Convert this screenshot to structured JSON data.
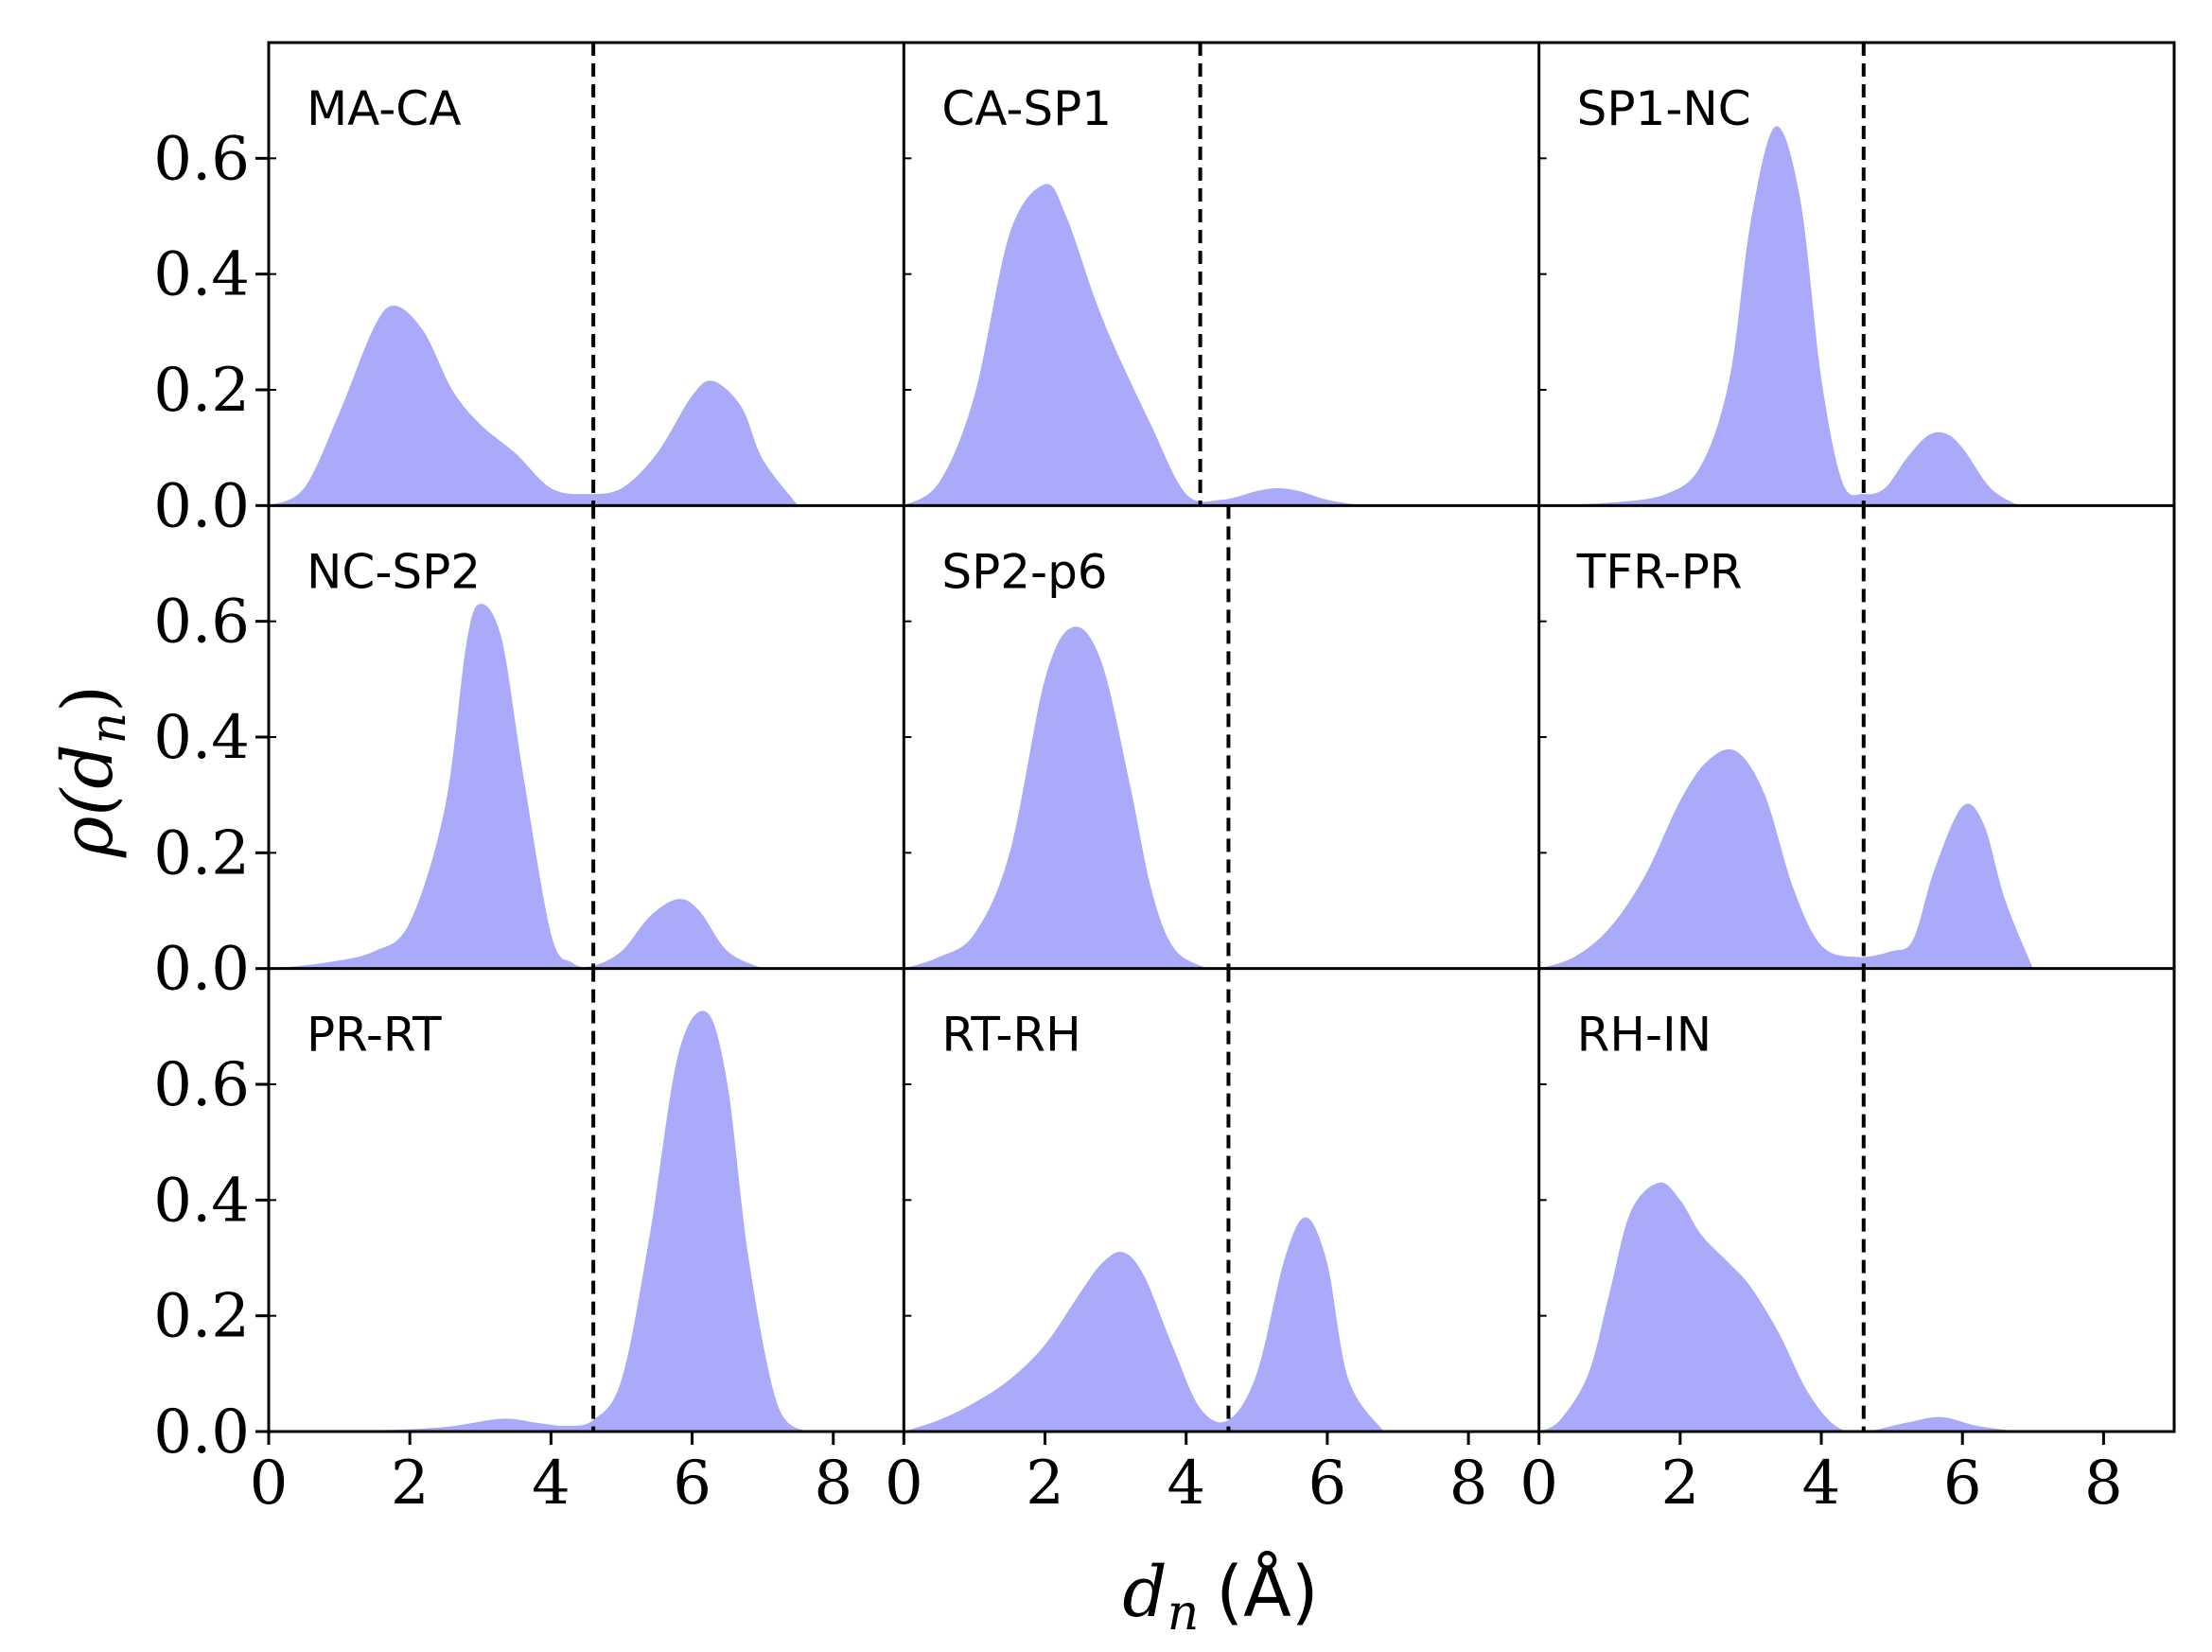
{
  "chart_data": {
    "type": "area",
    "layout": "3x3 grid of density panels, shared axes",
    "xlabel_symbol": "d",
    "xlabel_subscript": "n",
    "xlabel_unit": "(Å)",
    "ylabel_symbol": "ρ(d",
    "ylabel_subscript": "n",
    "ylabel_close": ")",
    "xlim": [
      0,
      9
    ],
    "ylim": [
      0,
      0.8
    ],
    "xticks": [
      "0",
      "2",
      "4",
      "6",
      "8"
    ],
    "xtick_values": [
      0,
      2,
      4,
      6,
      8
    ],
    "yticks": [
      "0.0",
      "0.2",
      "0.4",
      "0.6"
    ],
    "ytick_values": [
      0.0,
      0.2,
      0.4,
      0.6
    ],
    "fill_color": "#aaaafa",
    "threshold_style": "dashed black vertical line",
    "panels": [
      {
        "name": "MA-CA",
        "threshold": 4.6,
        "x": [
          0,
          0.5,
          1.0,
          1.5,
          1.8,
          2.2,
          2.6,
          3.0,
          3.5,
          4.0,
          4.5,
          5.0,
          5.5,
          6.0,
          6.3,
          6.7,
          7.0,
          7.5
        ],
        "y": [
          0.0,
          0.03,
          0.16,
          0.31,
          0.345,
          0.3,
          0.2,
          0.14,
          0.09,
          0.03,
          0.02,
          0.03,
          0.09,
          0.19,
          0.215,
          0.17,
          0.08,
          0.0
        ]
      },
      {
        "name": "CA-SP1",
        "threshold": 4.2,
        "x": [
          0,
          0.5,
          1.0,
          1.5,
          2.0,
          2.3,
          2.7,
          3.0,
          3.5,
          4.0,
          4.5,
          5.0,
          5.3,
          5.6,
          6.0,
          6.5
        ],
        "y": [
          0.0,
          0.04,
          0.19,
          0.47,
          0.555,
          0.5,
          0.36,
          0.27,
          0.14,
          0.02,
          0.01,
          0.025,
          0.03,
          0.025,
          0.01,
          0.0
        ]
      },
      {
        "name": "SP1-NC",
        "threshold": 4.6,
        "x": [
          0,
          1.0,
          1.8,
          2.3,
          2.7,
          3.0,
          3.35,
          3.7,
          4.0,
          4.3,
          4.6,
          4.9,
          5.2,
          5.5,
          5.75,
          6.0,
          6.4,
          6.8
        ],
        "y": [
          0.0,
          0.005,
          0.02,
          0.07,
          0.22,
          0.49,
          0.655,
          0.53,
          0.22,
          0.04,
          0.02,
          0.03,
          0.08,
          0.12,
          0.125,
          0.1,
          0.03,
          0.0
        ]
      },
      {
        "name": "NC-SP2",
        "threshold": 4.6,
        "x": [
          0,
          0.8,
          1.5,
          2.0,
          2.5,
          2.8,
          3.0,
          3.3,
          3.6,
          4.0,
          4.3,
          4.6,
          5.0,
          5.4,
          5.8,
          6.1,
          6.5,
          7.0
        ],
        "y": [
          0.0,
          0.01,
          0.03,
          0.08,
          0.28,
          0.56,
          0.63,
          0.57,
          0.34,
          0.06,
          0.01,
          0.005,
          0.03,
          0.09,
          0.12,
          0.1,
          0.03,
          0.0
        ]
      },
      {
        "name": "SP2-p6",
        "threshold": 4.6,
        "x": [
          0,
          0.5,
          1.0,
          1.5,
          2.0,
          2.4,
          2.8,
          3.2,
          3.5,
          3.8,
          4.2,
          4.6,
          5.5,
          7.0
        ],
        "y": [
          0.0,
          0.02,
          0.06,
          0.2,
          0.5,
          0.59,
          0.53,
          0.32,
          0.14,
          0.04,
          0.005,
          0.0,
          0.0,
          0.0
        ]
      },
      {
        "name": "TFR-PR",
        "threshold": 4.6,
        "x": [
          0,
          0.5,
          1.0,
          1.5,
          2.0,
          2.4,
          2.8,
          3.2,
          3.6,
          4.0,
          4.5,
          5.0,
          5.3,
          5.6,
          6.0,
          6.3,
          6.6,
          7.0
        ],
        "y": [
          0.0,
          0.02,
          0.07,
          0.16,
          0.29,
          0.36,
          0.375,
          0.3,
          0.14,
          0.04,
          0.02,
          0.03,
          0.05,
          0.17,
          0.28,
          0.25,
          0.12,
          0.0
        ]
      },
      {
        "name": "PR-RT",
        "threshold": 4.6,
        "x": [
          0,
          1.5,
          2.5,
          3.3,
          3.8,
          4.2,
          4.6,
          5.0,
          5.4,
          5.8,
          6.2,
          6.5,
          6.8,
          7.2,
          7.6
        ],
        "y": [
          0.0,
          0.002,
          0.008,
          0.022,
          0.015,
          0.01,
          0.02,
          0.09,
          0.34,
          0.65,
          0.725,
          0.6,
          0.3,
          0.05,
          0.0
        ]
      },
      {
        "name": "RT-RH",
        "threshold": 4.6,
        "x": [
          0,
          0.5,
          1.0,
          1.5,
          2.0,
          2.5,
          2.8,
          3.1,
          3.4,
          3.8,
          4.2,
          4.6,
          5.0,
          5.4,
          5.7,
          6.0,
          6.3,
          6.8
        ],
        "y": [
          0.0,
          0.02,
          0.05,
          0.09,
          0.15,
          0.24,
          0.29,
          0.31,
          0.27,
          0.15,
          0.04,
          0.02,
          0.1,
          0.3,
          0.37,
          0.29,
          0.09,
          0.0
        ]
      },
      {
        "name": "RH-IN",
        "threshold": 4.6,
        "x": [
          0,
          0.3,
          0.7,
          1.0,
          1.3,
          1.7,
          2.0,
          2.3,
          2.7,
          3.0,
          3.4,
          3.8,
          4.2,
          4.6,
          5.2,
          5.7,
          6.2,
          6.8
        ],
        "y": [
          0.0,
          0.02,
          0.1,
          0.24,
          0.38,
          0.43,
          0.4,
          0.34,
          0.29,
          0.25,
          0.17,
          0.07,
          0.01,
          0.0,
          0.015,
          0.025,
          0.01,
          0.0
        ]
      }
    ]
  }
}
